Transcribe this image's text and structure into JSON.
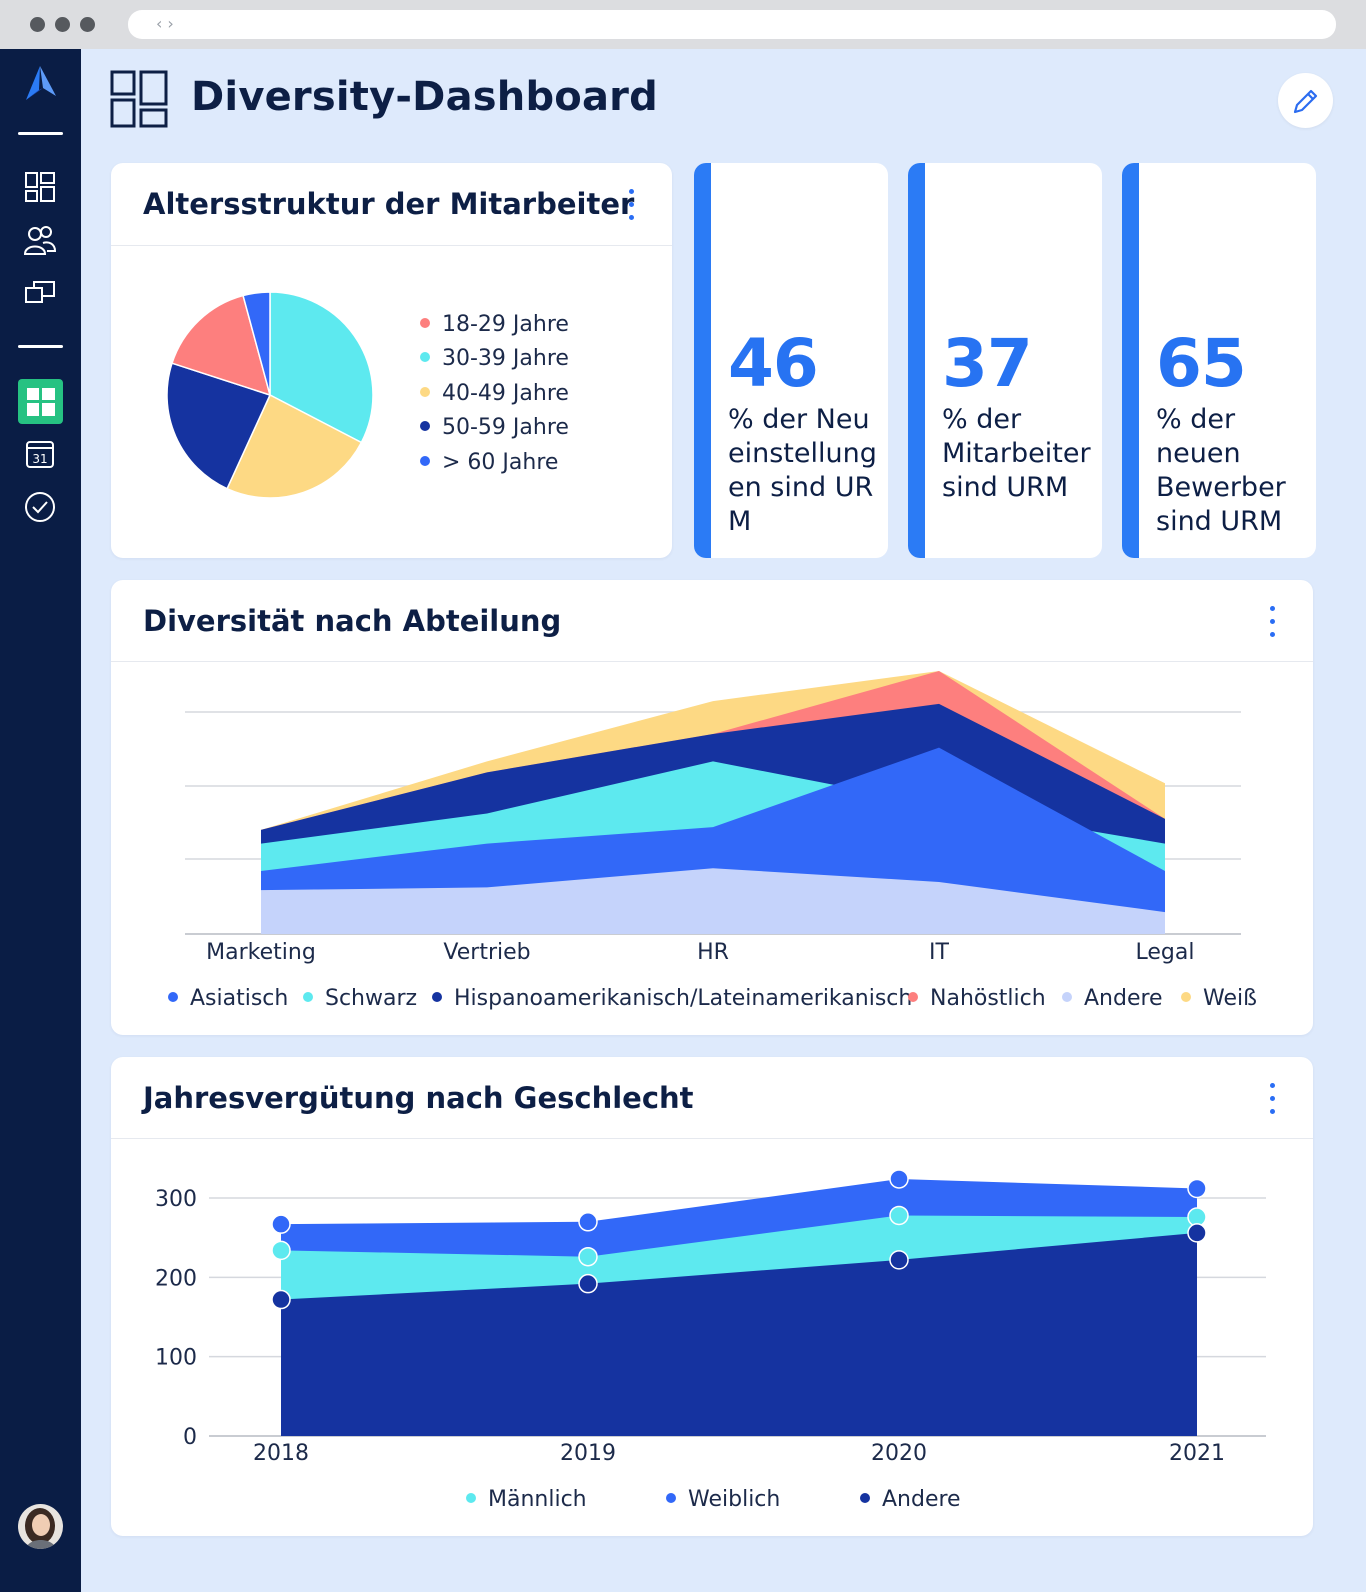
{
  "page": {
    "title": "Diversity-Dashboard"
  },
  "sidebar": {
    "items": [
      {
        "icon": "dashboard-grid-icon"
      },
      {
        "icon": "users-icon"
      },
      {
        "icon": "departments-icon"
      },
      {
        "icon": "active-dashboard-icon"
      },
      {
        "icon": "calendar-icon",
        "label": "31"
      },
      {
        "icon": "checkmark-icon"
      }
    ]
  },
  "age_card": {
    "title": "Altersstruktur der Mitarbeiter",
    "legend": [
      {
        "label": "18-29 Jahre",
        "color": "#fd7f7e"
      },
      {
        "label": "30-39 Jahre",
        "color": "#5de9ef"
      },
      {
        "label": "40-49 Jahre",
        "color": "#fdd984"
      },
      {
        "label": "50-59 Jahre",
        "color": "#1533a0"
      },
      {
        "label": "> 60 Jahre",
        "color": "#3268f8"
      }
    ]
  },
  "stats": [
    {
      "value": "46",
      "text": "% der Neueinstellungen sind URM"
    },
    {
      "value": "37",
      "text": "% der Mitarbeiter sind URM"
    },
    {
      "value": "65",
      "text": "% der neuen Bewerber sind URM"
    }
  ],
  "dept_card": {
    "title": "Diversität nach Abteilung",
    "legend": [
      {
        "label": "Asiatisch",
        "color": "#3268f8"
      },
      {
        "label": "Schwarz",
        "color": "#5de9ef"
      },
      {
        "label": "Hispanoamerikanisch/Lateinamerikanisch",
        "color": "#1533a0"
      },
      {
        "label": "Nahöstlich",
        "color": "#fd7f7e"
      },
      {
        "label": "Andere",
        "color": "#c5d3fb"
      },
      {
        "label": "Weiß",
        "color": "#fdd984"
      }
    ]
  },
  "pay_card": {
    "title": "Jahresvergütung nach Geschlecht",
    "legend": [
      {
        "label": "Männlich",
        "color": "#5de9ef"
      },
      {
        "label": "Weiblich",
        "color": "#3268f8"
      },
      {
        "label": "Andere",
        "color": "#1533a0"
      }
    ]
  },
  "chart_data": [
    {
      "type": "pie",
      "title": "Altersstruktur der Mitarbeiter",
      "categories": [
        "30-39 Jahre",
        "40-49 Jahre",
        "50-59 Jahre",
        "18-29 Jahre",
        "> 60 Jahre"
      ],
      "values": [
        31,
        23,
        22,
        15,
        4
      ],
      "colors": [
        "#5de9ef",
        "#fdd984",
        "#1533a0",
        "#fd7f7e",
        "#3268f8"
      ]
    },
    {
      "type": "area",
      "title": "Diversität nach Abteilung",
      "categories": [
        "Marketing",
        "Vertrieb",
        "HR",
        "IT",
        "Legal"
      ],
      "ylim": [
        0,
        100
      ],
      "series": [
        {
          "name": "Andere",
          "color": "#c5d3fb",
          "values": [
            16,
            17,
            24,
            19,
            8
          ]
        },
        {
          "name": "Asiatisch",
          "color": "#3268f8",
          "values": [
            23,
            33,
            39,
            68,
            23
          ]
        },
        {
          "name": "Schwarz",
          "color": "#5de9ef",
          "values": [
            33,
            44,
            63,
            47,
            33
          ]
        },
        {
          "name": "Hispanoamerikanisch/Lateinamerikanisch",
          "color": "#1533a0",
          "values": [
            38,
            59,
            73,
            84,
            42
          ]
        },
        {
          "name": "Nahöstlich",
          "color": "#fd7f7e",
          "values": [
            38,
            59,
            73,
            96,
            42
          ]
        },
        {
          "name": "Weiß",
          "color": "#fdd984",
          "values": [
            38,
            63,
            85,
            96,
            55
          ]
        }
      ],
      "grid": true
    },
    {
      "type": "area",
      "title": "Jahresvergütung nach Geschlecht",
      "x": [
        "2018",
        "2019",
        "2020",
        "2021"
      ],
      "yticks": [
        0,
        100,
        200,
        300
      ],
      "ylim": [
        0,
        300
      ],
      "series": [
        {
          "name": "Andere",
          "color": "#1533a0",
          "values": [
            172,
            192,
            222,
            256
          ]
        },
        {
          "name": "Männlich",
          "color": "#5de9ef",
          "values": [
            234,
            226,
            278,
            276
          ]
        },
        {
          "name": "Weiblich",
          "color": "#3268f8",
          "values": [
            267,
            270,
            324,
            312
          ]
        }
      ],
      "grid": true
    }
  ]
}
